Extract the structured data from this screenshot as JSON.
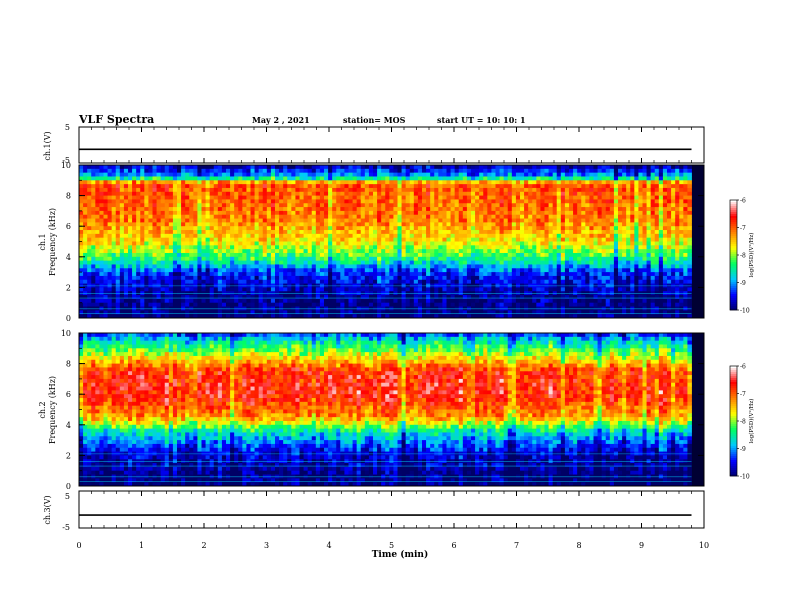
{
  "header": {
    "title": "VLF Spectra",
    "date": "May 2 , 2021",
    "station": "station= MOS",
    "start_ut": "start UT =  10: 10: 1"
  },
  "chart_data": [
    {
      "type": "line",
      "ylabel": "ch.1(V)",
      "xlim": [
        0,
        10
      ],
      "ylim": [
        -5,
        5
      ],
      "yticks": [
        "5",
        "-5"
      ],
      "series": [
        {
          "x": [
            0,
            9.8
          ],
          "y": [
            -1.2,
            -1.2
          ]
        }
      ]
    },
    {
      "type": "heatmap",
      "ylabel": "ch.1\nFrequency (kHz)",
      "xlim": [
        0,
        10
      ],
      "ylim": [
        0,
        10
      ],
      "yticks": [
        "0",
        "2",
        "4",
        "6",
        "8",
        "10"
      ],
      "data_extent_min": 9.8,
      "band_profile_khz": [
        {
          "f": 0.0,
          "level": -10
        },
        {
          "f": 1.5,
          "level": -9.8
        },
        {
          "f": 3.0,
          "level": -9.3
        },
        {
          "f": 4.0,
          "level": -8.2
        },
        {
          "f": 5.0,
          "level": -7.6
        },
        {
          "f": 6.5,
          "level": -7.1
        },
        {
          "f": 8.8,
          "level": -6.9
        },
        {
          "f": 9.2,
          "level": -8.8
        },
        {
          "f": 10.0,
          "level": -9.8
        }
      ],
      "colorbar": {
        "label": "log(PSD)(V²/Hz)",
        "ticks": [
          "-6",
          "-7",
          "-8",
          "-9",
          "-10"
        ],
        "range": [
          -10,
          -6
        ]
      }
    },
    {
      "type": "heatmap",
      "ylabel": "ch.2\nFrequency (kHz)",
      "xlim": [
        0,
        10
      ],
      "ylim": [
        0,
        10
      ],
      "yticks": [
        "0",
        "2",
        "4",
        "6",
        "8",
        "10"
      ],
      "data_extent_min": 9.8,
      "band_profile_khz": [
        {
          "f": 0.0,
          "level": -10
        },
        {
          "f": 2.0,
          "level": -9.6
        },
        {
          "f": 3.5,
          "level": -8.6
        },
        {
          "f": 4.5,
          "level": -7.2
        },
        {
          "f": 6.0,
          "level": -6.6
        },
        {
          "f": 7.5,
          "level": -6.7
        },
        {
          "f": 8.6,
          "level": -7.8
        },
        {
          "f": 9.5,
          "level": -8.6
        },
        {
          "f": 10.0,
          "level": -9.3
        }
      ],
      "colorbar": {
        "label": "log(PSD)(V²/Hz)",
        "ticks": [
          "-6",
          "-7",
          "-8",
          "-9",
          "-10"
        ],
        "range": [
          -10,
          -6
        ]
      }
    },
    {
      "type": "line",
      "ylabel": "ch.3(V)",
      "xlim": [
        0,
        10
      ],
      "ylim": [
        -5,
        5
      ],
      "yticks": [
        "5",
        "-5"
      ],
      "xlabel": "Time (min)",
      "xticks": [
        "0",
        "1",
        "2",
        "3",
        "4",
        "5",
        "6",
        "7",
        "8",
        "9",
        "10"
      ],
      "series": [
        {
          "x": [
            0,
            9.8
          ],
          "y": [
            -1.5,
            -1.5
          ]
        }
      ]
    }
  ],
  "colors": {
    "colormap": [
      "#000066",
      "#0000ff",
      "#00c8ff",
      "#00ff60",
      "#ffff00",
      "#ff8000",
      "#ff0000",
      "#ffffff"
    ]
  }
}
